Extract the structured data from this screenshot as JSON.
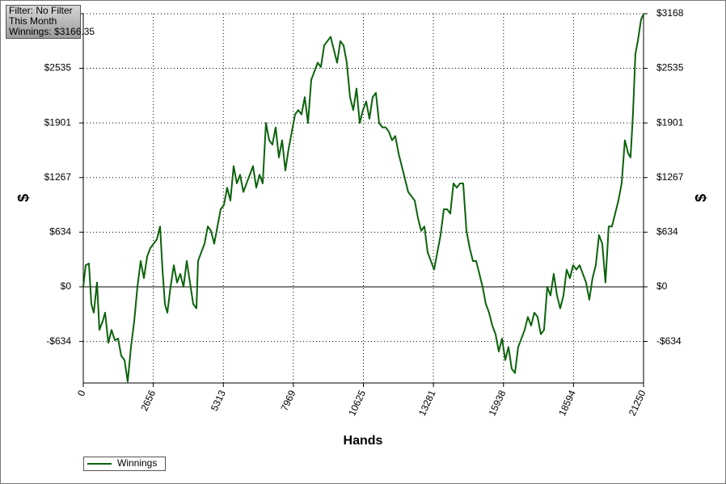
{
  "chart_data": {
    "type": "line",
    "annotation": [
      "Filter: No Filter",
      "This Month",
      "Winnings: $3166.35"
    ],
    "xlabel": "Hands",
    "ylabel": "$",
    "y2label": "$",
    "x": [
      0,
      92,
      215,
      307,
      399,
      521,
      613,
      736,
      828,
      950,
      1073,
      1196,
      1318,
      1441,
      1564,
      1686,
      1809,
      1932,
      2054,
      2177,
      2300,
      2422,
      2545,
      2667,
      2790,
      2913,
      3005,
      3097,
      3189,
      3311,
      3434,
      3557,
      3679,
      3802,
      3925,
      4047,
      4170,
      4292,
      4354,
      4476,
      4599,
      4722,
      4844,
      4967,
      5090,
      5212,
      5335,
      5457,
      5580,
      5703,
      5825,
      5948,
      6071,
      6193,
      6316,
      6438,
      6561,
      6684,
      6806,
      6929,
      7052,
      7174,
      7297,
      7420,
      7542,
      7665,
      7788,
      7910,
      8033,
      8156,
      8278,
      8401,
      8523,
      8646,
      8769,
      8891,
      9014,
      9137,
      9259,
      9382,
      9505,
      9627,
      9750,
      9873,
      9995,
      10118,
      10240,
      10363,
      10486,
      10608,
      10731,
      10854,
      10976,
      11099,
      11222,
      11344,
      11467,
      11590,
      11712,
      11835,
      11957,
      12080,
      12203,
      12325,
      12448,
      12571,
      12693,
      12816,
      12939,
      13061,
      13184,
      13307,
      13429,
      13552,
      13675,
      13797,
      13920,
      14042,
      14165,
      14288,
      14410,
      14533,
      14656,
      14778,
      14901,
      15024,
      15146,
      15269,
      15391,
      15514,
      15637,
      15759,
      15882,
      16005,
      16127,
      16250,
      16373,
      16495,
      16618,
      16741,
      16863,
      16986,
      17108,
      17231,
      17354,
      17476,
      17599,
      17722,
      17844,
      17967,
      18090,
      18212,
      18335,
      18457,
      18580,
      18703,
      18825,
      18948,
      19071,
      19193,
      19316,
      19439,
      19561,
      19684,
      19806,
      19929,
      20052,
      20174,
      20297,
      20420,
      20542,
      20665,
      20757,
      20849,
      20941,
      21033,
      21155,
      21250
    ],
    "series": [
      {
        "name": "Winnings",
        "color": "#0b630b",
        "values": [
          0,
          250,
          270,
          -200,
          -300,
          50,
          -500,
          -400,
          -300,
          -650,
          -500,
          -620,
          -600,
          -800,
          -850,
          -1100,
          -700,
          -400,
          0,
          300,
          100,
          350,
          450,
          500,
          550,
          700,
          200,
          -200,
          -300,
          0,
          250,
          50,
          150,
          0,
          300,
          50,
          -200,
          -250,
          300,
          400,
          500,
          700,
          650,
          500,
          700,
          900,
          950,
          1150,
          1000,
          1400,
          1200,
          1300,
          1100,
          1200,
          1300,
          1400,
          1150,
          1300,
          1200,
          1900,
          1700,
          1650,
          1850,
          1500,
          1700,
          1350,
          1600,
          1800,
          2000,
          2050,
          2000,
          2200,
          1900,
          2400,
          2500,
          2600,
          2550,
          2800,
          2850,
          2900,
          2750,
          2600,
          2850,
          2800,
          2600,
          2200,
          2050,
          2300,
          1900,
          2050,
          2150,
          1950,
          2200,
          2250,
          1900,
          1850,
          1850,
          1800,
          1700,
          1750,
          1550,
          1400,
          1250,
          1100,
          1050,
          1000,
          800,
          650,
          700,
          400,
          300,
          200,
          400,
          600,
          900,
          900,
          850,
          1200,
          1150,
          1200,
          1200,
          650,
          450,
          300,
          300,
          150,
          0,
          -200,
          -300,
          -450,
          -550,
          -750,
          -600,
          -850,
          -700,
          -950,
          -1000,
          -700,
          -600,
          -500,
          -350,
          -450,
          -300,
          -350,
          -550,
          -500,
          0,
          -100,
          150,
          -100,
          -250,
          -100,
          200,
          100,
          250,
          200,
          250,
          150,
          50,
          -150,
          100,
          250,
          600,
          500,
          50,
          700,
          700,
          850,
          1000,
          1200,
          1700,
          1550,
          1500,
          2000,
          2700,
          2850,
          3100,
          3166
        ]
      }
    ],
    "xlim": [
      0,
      21250
    ],
    "xticks": [
      0,
      2656,
      5313,
      7969,
      10625,
      13281,
      15938,
      18594,
      21250
    ],
    "ylim": [
      -1116,
      3168
    ],
    "yticks": [
      {
        "value": 3168,
        "label": "$3168"
      },
      {
        "value": 2535,
        "label": "$2535"
      },
      {
        "value": 1901,
        "label": "$1901"
      },
      {
        "value": 1267,
        "label": "$1267"
      },
      {
        "value": 634,
        "label": "$634"
      },
      {
        "value": 0,
        "label": "$0"
      },
      {
        "value": -634,
        "label": "-$634"
      }
    ],
    "y2lim": [
      -1116,
      3168
    ],
    "y2ticks": [
      {
        "value": 3168,
        "label": "$3168"
      },
      {
        "value": 2535,
        "label": "$2535"
      },
      {
        "value": 1901,
        "label": "$1901"
      },
      {
        "value": 1267,
        "label": "$1267"
      },
      {
        "value": 634,
        "label": "$634"
      },
      {
        "value": 0,
        "label": "$0"
      },
      {
        "value": -634,
        "label": "-$634"
      }
    ],
    "grid": true,
    "legend": "bottom-left"
  }
}
